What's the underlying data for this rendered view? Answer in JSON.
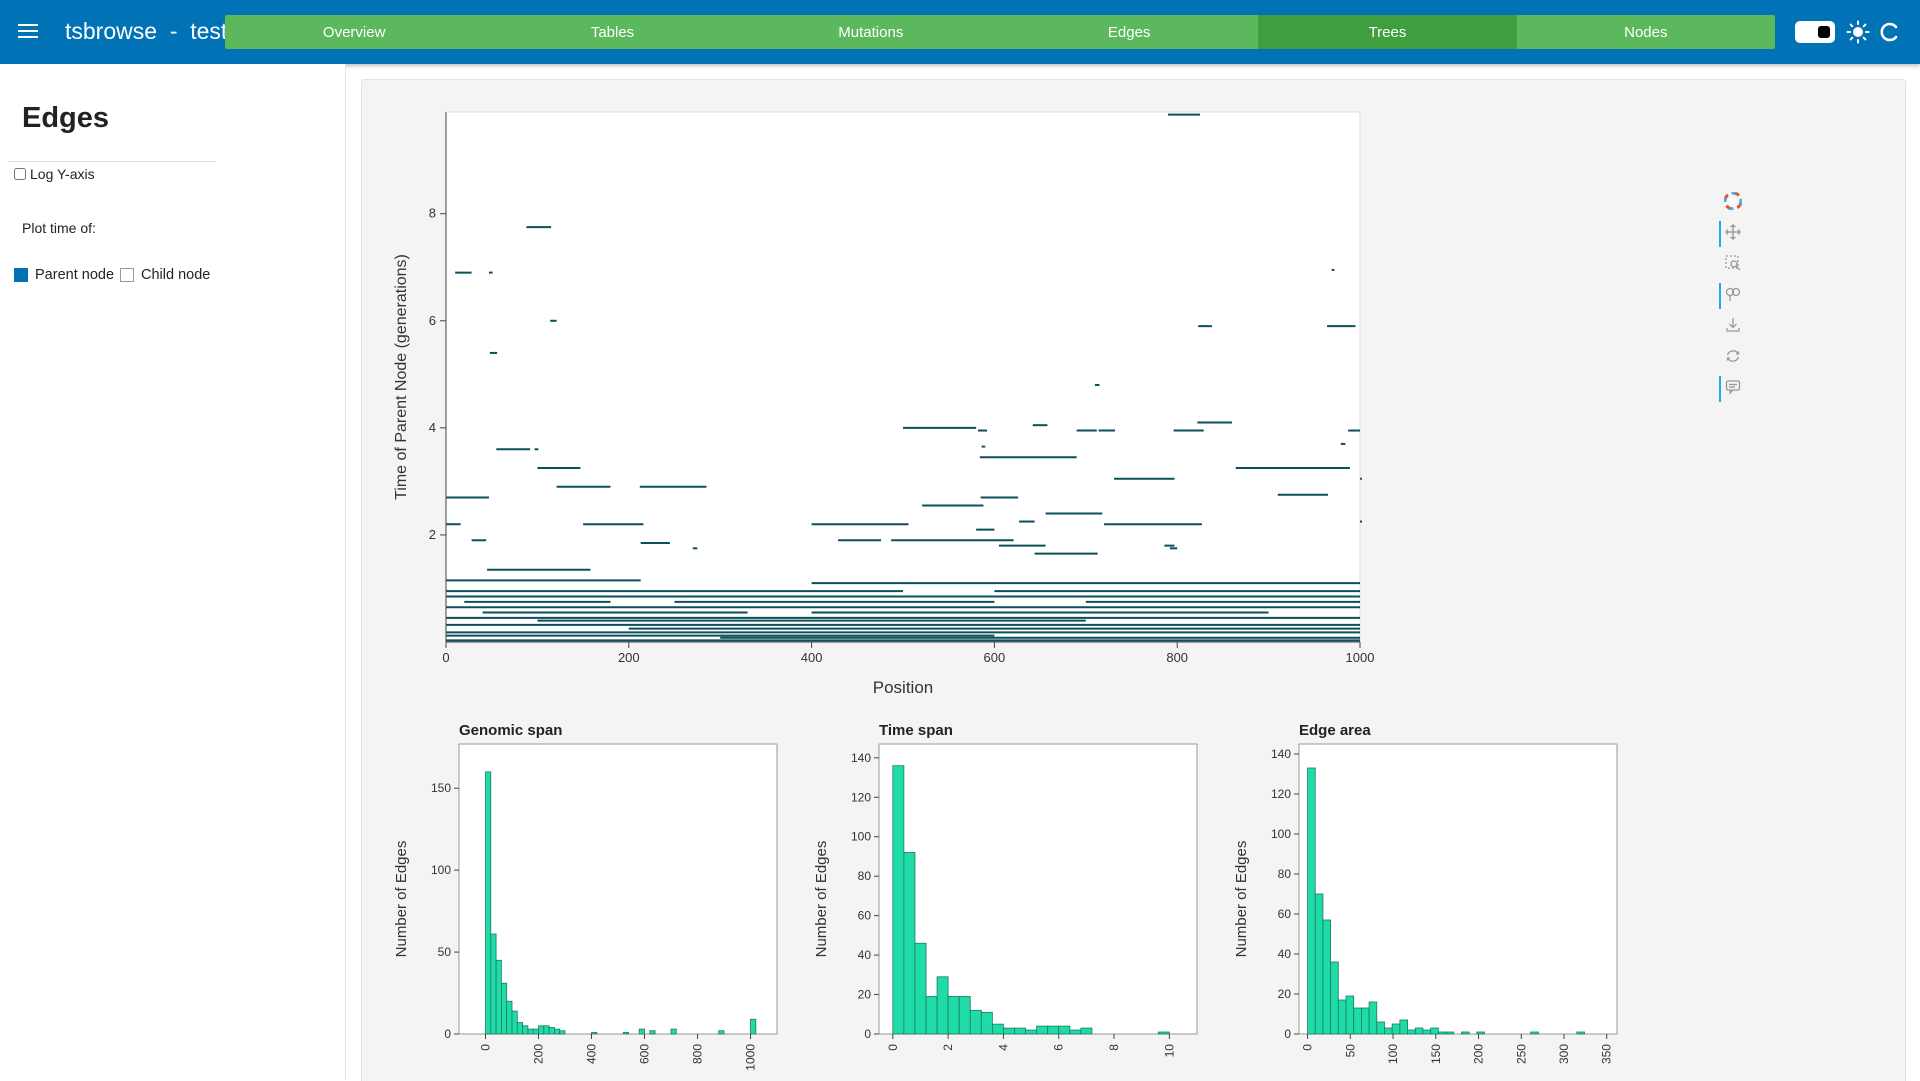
{
  "app": {
    "title": "tsbrowse  -  test"
  },
  "nav": {
    "tabs": [
      {
        "label": "Overview",
        "active": false
      },
      {
        "label": "Tables",
        "active": false
      },
      {
        "label": "Mutations",
        "active": false
      },
      {
        "label": "Edges",
        "active": false
      },
      {
        "label": "Trees",
        "active": true
      },
      {
        "label": "Nodes",
        "active": false
      }
    ]
  },
  "header_icons": {
    "menu": "hamburger-icon",
    "theme_toggle": "toggle-icon",
    "light_mode": "sun-icon",
    "busy_indicator": "loading-spinner-icon"
  },
  "sidebar": {
    "title": "Edges",
    "log_y_label": "Log Y-axis",
    "log_y_checked": false,
    "plot_time_label": "Plot time of:",
    "time_options": [
      {
        "label": "Parent node",
        "checked": true
      },
      {
        "label": "Child node",
        "checked": false
      }
    ]
  },
  "colors": {
    "header": "#0072b5",
    "nav": "#5cb85c",
    "nav_active": "#3f9f3f",
    "segment": "#0b4f5c",
    "histogram_bar": "#1fdba8",
    "histogram_edge": "#1e7a5e"
  },
  "toolbar": {
    "tools": [
      "bokeh-logo-icon",
      "pan-icon",
      "box-zoom-icon",
      "wheel-zoom-icon",
      "save-icon",
      "reset-icon",
      "hover-icon"
    ]
  },
  "chart_data": [
    {
      "type": "line",
      "xlabel": "Position",
      "ylabel": "Time of Parent Node (generations)",
      "xlim": [
        0,
        1000
      ],
      "ylim": [
        0,
        9.9
      ],
      "xticks": [
        "0",
        "200",
        "400",
        "600",
        "800",
        "1000"
      ],
      "yticks": [
        "2",
        "4",
        "6",
        "8"
      ],
      "series": [],
      "segments": [
        [
          790,
          825,
          9.85
        ],
        [
          88,
          115,
          7.75
        ],
        [
          10,
          28,
          6.9
        ],
        [
          47,
          51,
          6.9
        ],
        [
          969,
          972,
          6.95
        ],
        [
          114,
          121,
          6.0
        ],
        [
          823,
          838,
          5.9
        ],
        [
          964,
          995,
          5.9
        ],
        [
          48,
          56,
          5.4
        ],
        [
          710,
          715,
          4.8
        ],
        [
          500,
          580,
          4.0
        ],
        [
          582,
          592,
          3.95
        ],
        [
          642,
          658,
          4.05
        ],
        [
          690,
          712,
          3.95
        ],
        [
          714,
          732,
          3.95
        ],
        [
          796,
          829,
          3.95
        ],
        [
          822,
          860,
          4.1
        ],
        [
          987,
          1000,
          3.95
        ],
        [
          55,
          92,
          3.6
        ],
        [
          97,
          101,
          3.6
        ],
        [
          586,
          590,
          3.65
        ],
        [
          979,
          984,
          3.7
        ],
        [
          584,
          690,
          3.45
        ],
        [
          100,
          147,
          3.25
        ],
        [
          864,
          989,
          3.25
        ],
        [
          121,
          180,
          2.9
        ],
        [
          212,
          285,
          2.9
        ],
        [
          731,
          797,
          3.05
        ],
        [
          1000,
          1000,
          3.05
        ],
        [
          585,
          626,
          2.7
        ],
        [
          0,
          47,
          2.7
        ],
        [
          910,
          965,
          2.75
        ],
        [
          521,
          588,
          2.55
        ],
        [
          656,
          718,
          2.4
        ],
        [
          627,
          644,
          2.25
        ],
        [
          150,
          216,
          2.2
        ],
        [
          0,
          16,
          2.2
        ],
        [
          400,
          506,
          2.2
        ],
        [
          720,
          827,
          2.2
        ],
        [
          580,
          600,
          2.1
        ],
        [
          1000,
          1000,
          2.25
        ],
        [
          28,
          44,
          1.9
        ],
        [
          213,
          245,
          1.85
        ],
        [
          429,
          476,
          1.9
        ],
        [
          487,
          621,
          1.9
        ],
        [
          605,
          656,
          1.8
        ],
        [
          786,
          797,
          1.8
        ],
        [
          270,
          275,
          1.75
        ],
        [
          792,
          800,
          1.75
        ],
        [
          644,
          713,
          1.65
        ],
        [
          45,
          158,
          1.35
        ],
        [
          0,
          213,
          1.15
        ],
        [
          400,
          1000,
          1.1
        ],
        [
          0,
          500,
          0.95
        ],
        [
          600,
          1000,
          0.95
        ],
        [
          0,
          1000,
          0.85
        ],
        [
          20,
          180,
          0.75
        ],
        [
          250,
          600,
          0.75
        ],
        [
          700,
          1000,
          0.75
        ],
        [
          0,
          1000,
          0.65
        ],
        [
          40,
          330,
          0.55
        ],
        [
          400,
          900,
          0.55
        ],
        [
          0,
          1000,
          0.45
        ],
        [
          100,
          700,
          0.4
        ],
        [
          0,
          1000,
          0.32
        ],
        [
          200,
          1000,
          0.25
        ],
        [
          0,
          1000,
          0.18
        ],
        [
          0,
          600,
          0.12
        ],
        [
          300,
          1000,
          0.08
        ],
        [
          0,
          1000,
          0.03
        ]
      ]
    },
    {
      "type": "bar",
      "title": "Genomic span",
      "ylabel": "Number of Edges",
      "xlim": [
        -100,
        1100
      ],
      "ylim": [
        0,
        177
      ],
      "xticks": [
        0,
        200,
        400,
        600,
        800,
        1000
      ],
      "yticks": [
        0,
        50,
        100,
        150
      ],
      "bins": [
        [
          0,
          20,
          160
        ],
        [
          20,
          40,
          61
        ],
        [
          40,
          60,
          45
        ],
        [
          60,
          80,
          31
        ],
        [
          80,
          100,
          20
        ],
        [
          100,
          120,
          14
        ],
        [
          120,
          140,
          7
        ],
        [
          140,
          160,
          5
        ],
        [
          160,
          180,
          3
        ],
        [
          180,
          200,
          3
        ],
        [
          200,
          220,
          5
        ],
        [
          220,
          240,
          5
        ],
        [
          240,
          260,
          4
        ],
        [
          260,
          280,
          3
        ],
        [
          280,
          300,
          2
        ],
        [
          400,
          420,
          1
        ],
        [
          520,
          540,
          1
        ],
        [
          580,
          600,
          3
        ],
        [
          620,
          640,
          2
        ],
        [
          700,
          720,
          3
        ],
        [
          880,
          900,
          2
        ],
        [
          1000,
          1020,
          9
        ]
      ]
    },
    {
      "type": "bar",
      "title": "Time span",
      "ylabel": "Number of Edges",
      "xlim": [
        -0.5,
        11.0
      ],
      "ylim": [
        0,
        147
      ],
      "xticks": [
        0,
        2,
        4,
        6,
        8,
        10
      ],
      "yticks": [
        0,
        20,
        40,
        60,
        80,
        100,
        120,
        140
      ],
      "bins": [
        [
          0,
          0.4,
          136
        ],
        [
          0.4,
          0.8,
          92
        ],
        [
          0.8,
          1.2,
          46
        ],
        [
          1.2,
          1.6,
          19
        ],
        [
          1.6,
          2.0,
          29
        ],
        [
          2.0,
          2.4,
          19
        ],
        [
          2.4,
          2.8,
          19
        ],
        [
          2.8,
          3.2,
          12
        ],
        [
          3.2,
          3.6,
          11
        ],
        [
          3.6,
          4.0,
          5
        ],
        [
          4.0,
          4.4,
          3
        ],
        [
          4.4,
          4.8,
          3
        ],
        [
          4.8,
          5.2,
          2
        ],
        [
          5.2,
          5.6,
          4
        ],
        [
          5.6,
          6.0,
          4
        ],
        [
          6.0,
          6.4,
          4
        ],
        [
          6.4,
          6.8,
          2
        ],
        [
          6.8,
          7.2,
          3
        ],
        [
          9.6,
          10.0,
          1
        ]
      ]
    },
    {
      "type": "bar",
      "title": "Edge area",
      "ylabel": "Number of Edges",
      "xlim": [
        -10,
        362
      ],
      "ylim": [
        0,
        145
      ],
      "xticks": [
        0,
        50,
        100,
        150,
        200,
        250,
        300,
        350
      ],
      "yticks": [
        0,
        20,
        40,
        60,
        80,
        100,
        120,
        140
      ],
      "bins": [
        [
          0,
          9,
          133
        ],
        [
          9,
          18,
          70
        ],
        [
          18,
          27,
          57
        ],
        [
          27,
          36,
          36
        ],
        [
          36,
          45,
          17
        ],
        [
          45,
          54,
          19
        ],
        [
          54,
          63,
          13
        ],
        [
          63,
          72,
          13
        ],
        [
          72,
          81,
          16
        ],
        [
          81,
          90,
          6
        ],
        [
          90,
          99,
          3
        ],
        [
          99,
          108,
          5
        ],
        [
          108,
          117,
          7
        ],
        [
          117,
          126,
          2
        ],
        [
          126,
          135,
          3
        ],
        [
          135,
          144,
          2
        ],
        [
          144,
          153,
          3
        ],
        [
          153,
          162,
          1
        ],
        [
          162,
          171,
          1
        ],
        [
          180,
          189,
          1
        ],
        [
          198,
          207,
          1
        ],
        [
          261,
          270,
          1
        ],
        [
          315,
          324,
          1
        ]
      ]
    }
  ]
}
